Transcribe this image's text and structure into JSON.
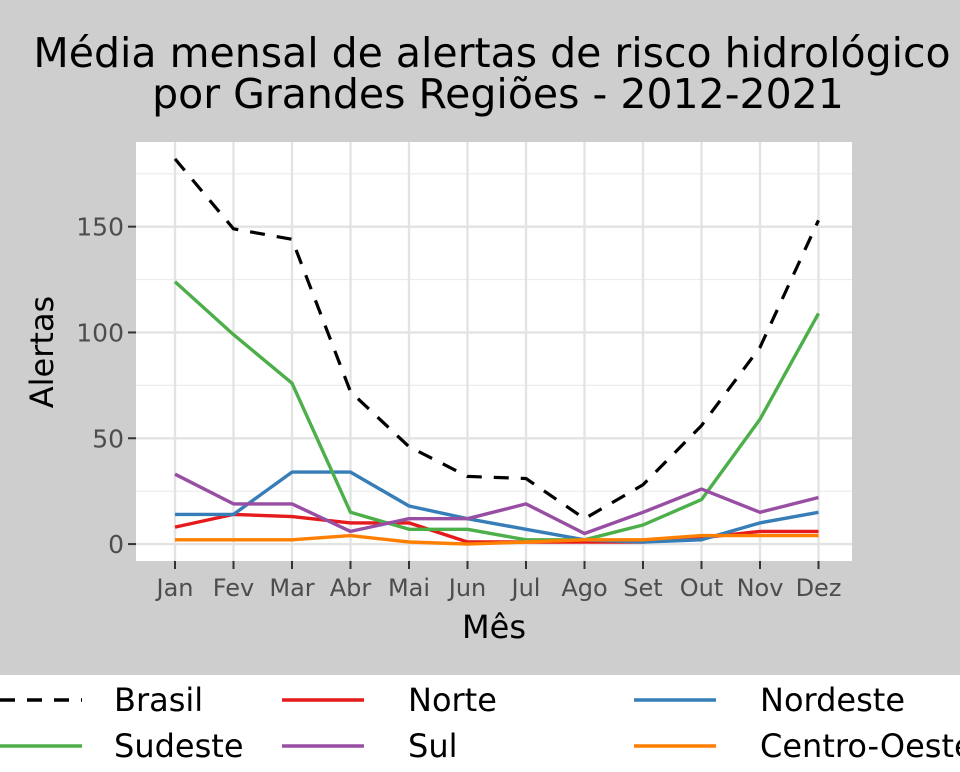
{
  "chart_data": {
    "type": "line",
    "title": "Média mensal de alertas de risco hidrológico",
    "subtitle": "por Grandes Regiões - 2012-2021",
    "xlabel": "Mês",
    "ylabel": "Alertas",
    "categories": [
      "Jan",
      "Fev",
      "Mar",
      "Abr",
      "Mai",
      "Jun",
      "Jul",
      "Ago",
      "Set",
      "Out",
      "Nov",
      "Dez"
    ],
    "yticks": [
      0,
      50,
      100,
      150
    ],
    "ylim": [
      -8,
      190
    ],
    "grid": true,
    "legend_position": "bottom",
    "series": [
      {
        "name": "Brasil",
        "color": "#000000",
        "dash": true,
        "values": [
          182,
          149,
          144,
          72,
          46,
          32,
          31,
          12,
          28,
          56,
          93,
          153
        ]
      },
      {
        "name": "Norte",
        "color": "#e41a1c",
        "dash": false,
        "values": [
          8,
          14,
          13,
          10,
          10,
          1,
          1,
          1,
          1,
          3,
          6,
          6
        ]
      },
      {
        "name": "Nordeste",
        "color": "#377eb8",
        "dash": false,
        "values": [
          14,
          14,
          34,
          34,
          18,
          12,
          7,
          2,
          1,
          2,
          10,
          15
        ]
      },
      {
        "name": "Sudeste",
        "color": "#4daf4a",
        "dash": false,
        "values": [
          124,
          99,
          76,
          15,
          7,
          7,
          2,
          2,
          9,
          21,
          59,
          109
        ]
      },
      {
        "name": "Sul",
        "color": "#984ea3",
        "dash": false,
        "values": [
          33,
          19,
          19,
          6,
          12,
          12,
          19,
          5,
          15,
          26,
          15,
          22
        ]
      },
      {
        "name": "Centro-Oeste",
        "color": "#ff7f00",
        "dash": false,
        "values": [
          2,
          2,
          2,
          4,
          1,
          0,
          1,
          2,
          2,
          4,
          4,
          4
        ]
      }
    ]
  }
}
